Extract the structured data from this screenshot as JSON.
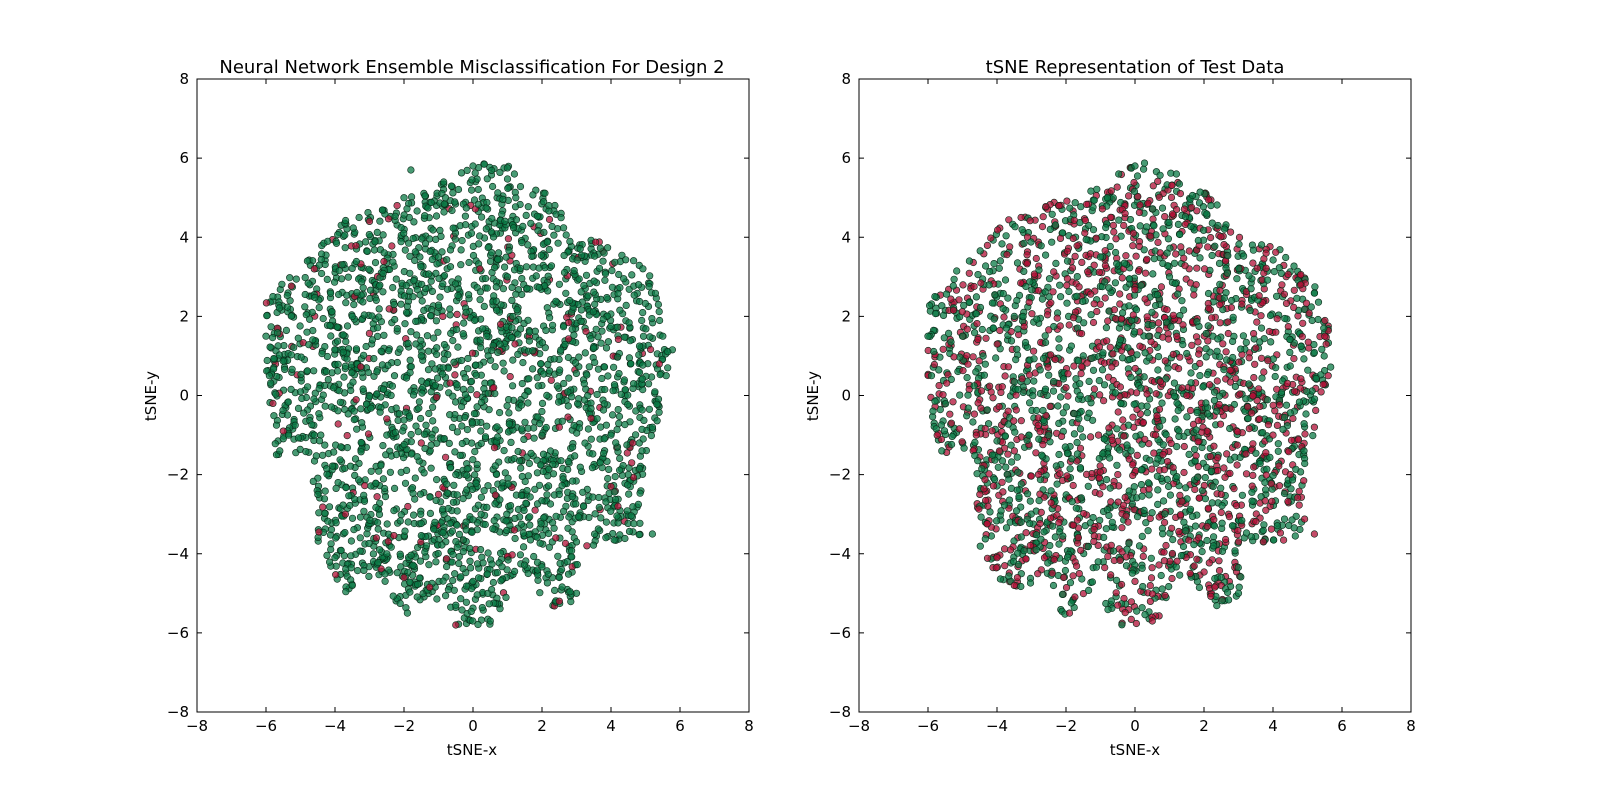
{
  "chart_data": [
    {
      "type": "scatter",
      "title": "Neural Network Ensemble Misclassification For Design 2",
      "xlabel": "tSNE-x",
      "ylabel": "tSNE-y",
      "xlim": [
        -8,
        8
      ],
      "ylim": [
        -8,
        8
      ],
      "xticks": [
        "−8",
        "−6",
        "−4",
        "−2",
        "0",
        "2",
        "4",
        "6",
        "8"
      ],
      "yticks": [
        "8",
        "6",
        "4",
        "2",
        "0",
        "−2",
        "−4",
        "−6",
        "−8"
      ],
      "grid": false,
      "colors": {
        "green": "#0b7a46",
        "red": "#b00f35"
      },
      "red_share": 0.06,
      "series": [
        {
          "color": "green",
          "points": [
            [
              0.0,
              5.8
            ],
            [
              1.2,
              5.6
            ],
            [
              -0.8,
              5.0
            ],
            [
              2.2,
              4.8
            ],
            [
              3.8,
              3.6
            ],
            [
              4.8,
              2.8
            ],
            [
              5.5,
              1.5
            ],
            [
              5.6,
              0.5
            ],
            [
              5.2,
              -0.8
            ],
            [
              4.9,
              -1.4
            ],
            [
              4.5,
              -2.0
            ],
            [
              5.2,
              -3.5
            ],
            [
              3.0,
              -3.7
            ],
            [
              2.5,
              -4.6
            ],
            [
              3.0,
              -5.0
            ],
            [
              1.6,
              -4.5
            ],
            [
              0.0,
              -4.7
            ],
            [
              0.5,
              -5.7
            ],
            [
              -0.5,
              -5.3
            ],
            [
              -1.9,
              -5.5
            ],
            [
              -2.5,
              -4.0
            ],
            [
              -3.5,
              -4.8
            ],
            [
              -4.0,
              -4.1
            ],
            [
              -4.5,
              -2.5
            ],
            [
              -4.6,
              -1.0
            ],
            [
              -5.6,
              -1.4
            ],
            [
              -5.9,
              0.5
            ],
            [
              -6.0,
              1.5
            ],
            [
              -5.8,
              2.5
            ],
            [
              -4.8,
              3.4
            ],
            [
              -3.3,
              4.5
            ],
            [
              -2.0,
              5.0
            ],
            [
              -1.8,
              5.7
            ],
            [
              0.4,
              1.5
            ],
            [
              -1.5,
              1.0
            ],
            [
              1.5,
              0.0
            ],
            [
              -2.5,
              -1.0
            ],
            [
              2.5,
              -2.5
            ],
            [
              -0.5,
              -2.0
            ],
            [
              3.5,
              1.2
            ],
            [
              -3.5,
              2.0
            ],
            [
              1.0,
              3.0
            ],
            [
              -1.0,
              3.5
            ],
            [
              2.8,
              2.4
            ],
            [
              -0.2,
              -3.2
            ],
            [
              4.0,
              -1.0
            ]
          ]
        },
        {
          "color": "red",
          "points": [
            [
              -2.2,
              4.8
            ],
            [
              -5.8,
              -0.2
            ],
            [
              4.0,
              -2.3
            ],
            [
              2.5,
              -5.2
            ],
            [
              -1.0,
              -2.5
            ],
            [
              0.6,
              0.2
            ],
            [
              -3.7,
              -3.0
            ],
            [
              2.4,
              -3.6
            ],
            [
              5.4,
              0.8
            ],
            [
              -4.6,
              3.2
            ],
            [
              -0.5,
              -5.8
            ],
            [
              1.8,
              -2.9
            ],
            [
              -2.0,
              -4.6
            ],
            [
              3.3,
              -3.8
            ],
            [
              4.2,
              -2.8
            ],
            [
              -3.0,
              4.4
            ],
            [
              0.8,
              1.8
            ],
            [
              -1.5,
              -1.2
            ],
            [
              2.5,
              -0.8
            ],
            [
              -2.8,
              -3.6
            ],
            [
              1.2,
              -3.4
            ],
            [
              -5.5,
              -0.9
            ],
            [
              4.6,
              -1.7
            ],
            [
              0.2,
              3.2
            ]
          ]
        }
      ]
    },
    {
      "type": "scatter",
      "title": "tSNE Representation of Test Data",
      "xlabel": "tSNE-x",
      "ylabel": "tSNE-y",
      "xlim": [
        -8,
        8
      ],
      "ylim": [
        -8,
        8
      ],
      "xticks": [
        "−8",
        "−6",
        "−4",
        "−2",
        "0",
        "2",
        "4",
        "6",
        "8"
      ],
      "yticks": [
        "8",
        "6",
        "4",
        "2",
        "0",
        "−2",
        "−4",
        "−6",
        "−8"
      ],
      "grid": false,
      "colors": {
        "green": "#0b7a46",
        "red": "#b00f35"
      },
      "red_share": 0.45,
      "series": [
        {
          "color": "green",
          "points": [
            [
              0.0,
              5.8
            ],
            [
              1.2,
              5.6
            ],
            [
              -0.8,
              5.0
            ],
            [
              2.2,
              4.8
            ],
            [
              -6.0,
              1.5
            ],
            [
              -5.8,
              2.5
            ],
            [
              -4.8,
              3.4
            ],
            [
              -5.6,
              -1.4
            ],
            [
              -5.9,
              0.5
            ],
            [
              -1.0,
              3.5
            ],
            [
              1.0,
              3.0
            ],
            [
              -3.5,
              2.0
            ],
            [
              -1.5,
              1.0
            ],
            [
              0.4,
              1.5
            ],
            [
              -2.5,
              -1.0
            ],
            [
              2.8,
              2.4
            ],
            [
              4.9,
              -1.4
            ],
            [
              2.5,
              -4.6
            ],
            [
              3.0,
              -5.0
            ],
            [
              -3.3,
              -3.2
            ],
            [
              -2.5,
              -4.0
            ]
          ]
        },
        {
          "color": "red",
          "points": [
            [
              -2.2,
              4.8
            ],
            [
              -3.3,
              4.5
            ],
            [
              3.8,
              3.6
            ],
            [
              4.8,
              2.8
            ],
            [
              5.5,
              1.5
            ],
            [
              5.6,
              0.5
            ],
            [
              5.2,
              -0.8
            ],
            [
              4.5,
              -2.0
            ],
            [
              5.2,
              -3.5
            ],
            [
              3.0,
              -3.7
            ],
            [
              1.6,
              -4.5
            ],
            [
              0.0,
              -4.7
            ],
            [
              0.5,
              -5.7
            ],
            [
              -0.5,
              -5.3
            ],
            [
              -1.9,
              -5.5
            ],
            [
              -3.5,
              -4.8
            ],
            [
              -4.0,
              -4.1
            ],
            [
              -4.5,
              -2.5
            ],
            [
              -4.6,
              -1.0
            ],
            [
              -2.0,
              0.2
            ],
            [
              1.5,
              0.0
            ],
            [
              2.5,
              -2.5
            ],
            [
              -0.5,
              -2.0
            ],
            [
              3.5,
              1.2
            ],
            [
              -0.2,
              -3.2
            ],
            [
              4.0,
              -1.0
            ],
            [
              -2.8,
              -2.0
            ],
            [
              0.6,
              -1.0
            ]
          ]
        }
      ]
    }
  ]
}
